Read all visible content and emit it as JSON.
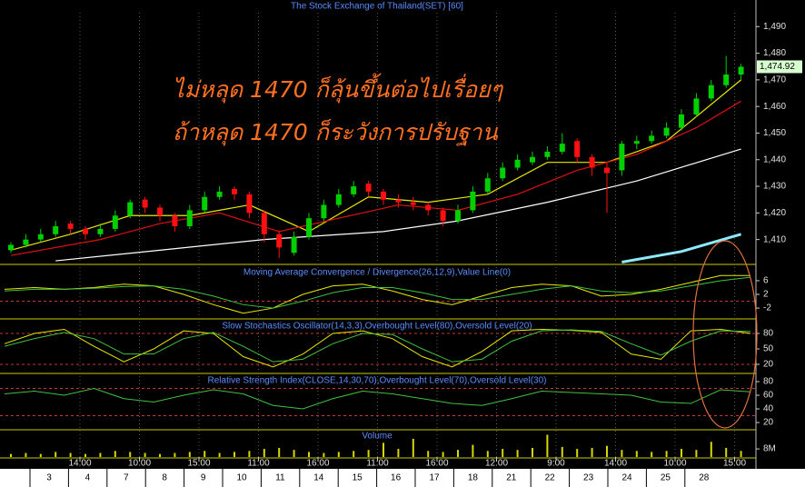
{
  "x_axis": {
    "times": [
      "14:00",
      "10:00",
      "15:00",
      "11:00",
      "16:00",
      "11:00",
      "16:00",
      "12:00",
      "9:00",
      "14:00",
      "10:00",
      "15:00"
    ],
    "dates": [
      "3",
      "4",
      "7",
      "8",
      "9",
      "10",
      "11",
      "14",
      "15",
      "16",
      "17",
      "18",
      "21",
      "22",
      "23",
      "24",
      "25",
      "28"
    ]
  },
  "chart_data": [
    {
      "type": "candlestick",
      "title": "The Stock Exchange of Thailand(SET) [60]",
      "annotations": [
        "ไม่หลุด 1470 ก็ลุ้นขึ้นต่อไปเรื่อยๆ",
        "ถ้าหลุด 1470 ก็ระวังการปรับฐาน"
      ],
      "up_color": "#00d000",
      "down_color": "#ff1010",
      "open": [
        1406,
        1408,
        1410,
        1412,
        1416,
        1414,
        1412,
        1414,
        1419,
        1425,
        1422,
        1419,
        1415,
        1421,
        1426,
        1429,
        1427,
        1420,
        1412,
        1405,
        1411,
        1418,
        1423,
        1427,
        1431,
        1428,
        1425,
        1424,
        1423,
        1421,
        1417,
        1421,
        1428,
        1433,
        1437,
        1439,
        1441,
        1443,
        1447,
        1441,
        1437,
        1436,
        1446,
        1447,
        1449,
        1452,
        1457,
        1463,
        1468,
        1472
      ],
      "high": [
        1409,
        1412,
        1414,
        1417,
        1417,
        1415,
        1416,
        1421,
        1425,
        1426,
        1423,
        1420,
        1423,
        1428,
        1430,
        1430,
        1428,
        1421,
        1413,
        1413,
        1420,
        1425,
        1429,
        1432,
        1432,
        1429,
        1427,
        1426,
        1424,
        1422,
        1423,
        1430,
        1435,
        1439,
        1442,
        1443,
        1445,
        1450,
        1448,
        1442,
        1439,
        1447,
        1449,
        1451,
        1454,
        1459,
        1465,
        1470,
        1479,
        1476
      ],
      "low": [
        1405,
        1407,
        1409,
        1411,
        1412,
        1410,
        1411,
        1413,
        1418,
        1420,
        1417,
        1413,
        1414,
        1420,
        1425,
        1425,
        1418,
        1409,
        1403,
        1404,
        1410,
        1417,
        1422,
        1426,
        1426,
        1423,
        1422,
        1421,
        1419,
        1415,
        1416,
        1420,
        1427,
        1432,
        1436,
        1438,
        1440,
        1442,
        1439,
        1434,
        1420,
        1434,
        1444,
        1446,
        1448,
        1451,
        1456,
        1462,
        1467,
        1470
      ],
      "close": [
        1408,
        1410,
        1412,
        1415,
        1414,
        1412,
        1414,
        1419,
        1424,
        1422,
        1419,
        1415,
        1421,
        1426,
        1428,
        1427,
        1420,
        1412,
        1407,
        1411,
        1418,
        1423,
        1427,
        1430,
        1428,
        1425,
        1424,
        1423,
        1421,
        1417,
        1421,
        1428,
        1433,
        1437,
        1440,
        1441,
        1443,
        1446,
        1441,
        1437,
        1435,
        1446,
        1447,
        1449,
        1452,
        1457,
        1463,
        1468,
        1472,
        1474.92
      ],
      "moving_averages": [
        {
          "color": "#e8e800",
          "x": [
            0,
            4,
            8,
            12,
            16,
            20,
            24,
            28,
            32,
            36,
            40,
            44,
            49
          ],
          "values": [
            1406,
            1412,
            1419,
            1419,
            1423,
            1413,
            1426,
            1424,
            1427,
            1439,
            1439,
            1447,
            1470
          ]
        },
        {
          "color": "#e01010",
          "x": [
            0,
            6,
            10,
            14,
            18,
            22,
            26,
            30,
            34,
            38,
            42,
            46,
            49
          ],
          "values": [
            1404,
            1410,
            1416,
            1420,
            1413,
            1418,
            1423,
            1421,
            1427,
            1436,
            1442,
            1452,
            1462
          ]
        },
        {
          "color": "#ffffff",
          "x": [
            3,
            10,
            17,
            25,
            30,
            36,
            42,
            49
          ],
          "values": [
            1402,
            1406,
            1410,
            1413,
            1417,
            1424,
            1432,
            1444
          ]
        },
        {
          "color": "#8ee8ff",
          "x": [
            41,
            45,
            49
          ],
          "values": [
            1401.5,
            1405.5,
            1412
          ]
        }
      ],
      "last_price": {
        "value": 1474.92,
        "label": "1,474.92"
      },
      "ylim": [
        1401,
        1500
      ],
      "yticks": [
        {
          "value": 1410,
          "label": "1,410"
        },
        {
          "value": 1420,
          "label": "1,420"
        },
        {
          "value": 1430,
          "label": "1,430"
        },
        {
          "value": 1440,
          "label": "1,440"
        },
        {
          "value": 1450,
          "label": "1,450"
        },
        {
          "value": 1460,
          "label": "1,460"
        },
        {
          "value": 1470,
          "label": "1,470"
        },
        {
          "value": 1480,
          "label": "1,480"
        },
        {
          "value": 1490,
          "label": "1,490"
        }
      ]
    },
    {
      "type": "line",
      "title": "Moving Average Convergence / Divergence(26,12,9),Value Line(0)",
      "series": [
        {
          "color": "#e8e800",
          "values": [
            3.5,
            4,
            3.5,
            4,
            5,
            4.5,
            2,
            -1,
            -3.5,
            -2,
            2,
            4.5,
            5,
            3,
            0.5,
            -1,
            1.5,
            4,
            5,
            4.5,
            1.5,
            2,
            3.5,
            5.5,
            7.5,
            7.5
          ]
        },
        {
          "color": "#40c040",
          "values": [
            3,
            3.5,
            3.5,
            3.8,
            4.3,
            4.5,
            3.5,
            1.5,
            -1,
            -2,
            0,
            2.5,
            4,
            4,
            2.5,
            0.5,
            0.5,
            2,
            3.5,
            4.5,
            3,
            2.5,
            3,
            4.5,
            6,
            7
          ]
        }
      ],
      "levels": [
        0
      ],
      "ylim": [
        -4.9,
        10.5
      ],
      "yticks": [
        6,
        2,
        -2
      ]
    },
    {
      "type": "line",
      "title": "Slow Stochastics Oscillator(14,3,3),Overbought Level(80),Oversold Level(20)",
      "series": [
        {
          "color": "#e8e800",
          "values": [
            60,
            80,
            88,
            55,
            25,
            50,
            85,
            80,
            35,
            15,
            40,
            80,
            85,
            70,
            35,
            15,
            45,
            85,
            88,
            86,
            82,
            40,
            30,
            85,
            88,
            80
          ]
        },
        {
          "color": "#40c040",
          "values": [
            55,
            70,
            82,
            70,
            40,
            40,
            70,
            82,
            55,
            25,
            30,
            60,
            80,
            78,
            50,
            25,
            30,
            65,
            85,
            87,
            84,
            60,
            38,
            65,
            85,
            84
          ]
        }
      ],
      "levels": [
        80,
        20
      ],
      "ylim": [
        4.1,
        106.5
      ],
      "yticks": [
        80,
        50,
        20
      ]
    },
    {
      "type": "line",
      "title": "Relative Strength Index(CLOSE,14,30,70),Overbought Level(70),Oversold Level(30)",
      "series": [
        {
          "color": "#40c040",
          "values": [
            62,
            66,
            60,
            70,
            55,
            50,
            60,
            68,
            62,
            45,
            40,
            55,
            66,
            62,
            55,
            48,
            45,
            55,
            66,
            64,
            62,
            60,
            50,
            48,
            68,
            65
          ]
        }
      ],
      "levels": [
        70,
        30
      ],
      "ylim": [
        10.7,
        90.7
      ],
      "yticks": [
        80,
        60,
        40,
        20
      ]
    },
    {
      "type": "bar",
      "title": "Volume",
      "color": "#d8d800",
      "values": [
        3000000,
        4000000,
        3000000,
        5000000,
        4000000,
        3000000,
        4000000,
        6000000,
        5000000,
        4000000,
        3000000,
        4000000,
        5000000,
        6000000,
        4000000,
        5000000,
        6000000,
        8000000,
        9000000,
        7000000,
        5000000,
        4000000,
        5000000,
        6000000,
        7000000,
        14000000,
        8000000,
        18000000,
        6000000,
        5000000,
        7000000,
        12000000,
        6000000,
        8000000,
        7000000,
        9000000,
        22000000,
        10000000,
        8000000,
        9000000,
        11000000,
        7000000,
        6000000,
        5000000,
        6000000,
        8000000,
        7000000,
        15000000,
        9000000,
        6000000
      ],
      "ylim": [
        0,
        26000000
      ],
      "yticks": [
        {
          "value": 8000000,
          "label": "8M"
        }
      ]
    }
  ]
}
